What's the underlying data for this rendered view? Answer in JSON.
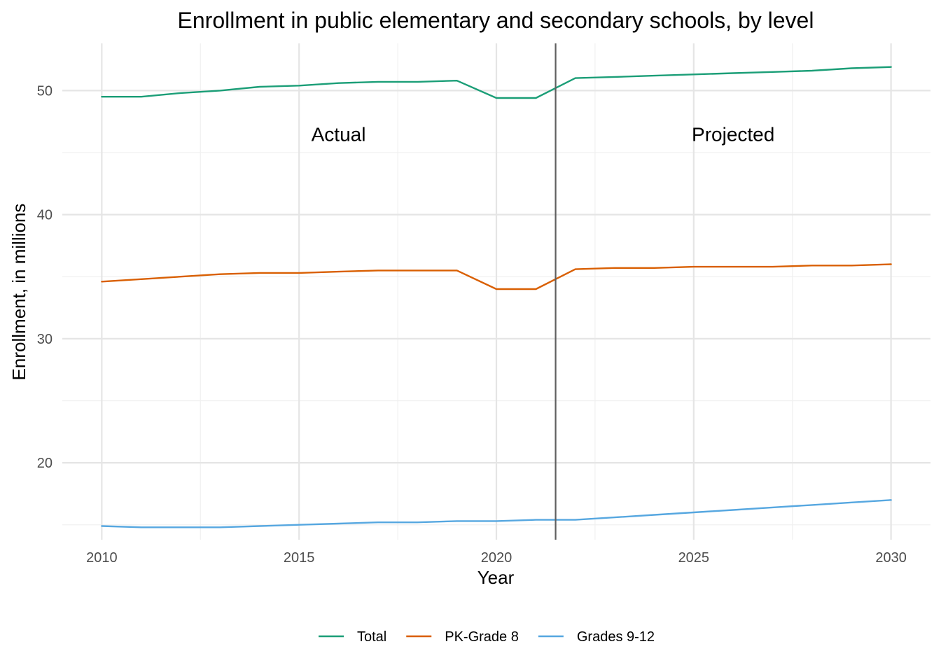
{
  "chart_data": {
    "type": "line",
    "title": "Enrollment in public elementary and secondary schools, by level",
    "xlabel": "Year",
    "ylabel": "Enrollment, in millions",
    "xlim": [
      2009,
      2031
    ],
    "ylim": [
      13.8,
      53.8
    ],
    "x_ticks": [
      2010,
      2015,
      2020,
      2025,
      2030
    ],
    "y_ticks": [
      20,
      30,
      40,
      50
    ],
    "x_tick_labels": [
      "2010",
      "2015",
      "2020",
      "2025",
      "2030"
    ],
    "y_tick_labels": [
      "20",
      "30",
      "40",
      "50"
    ],
    "grid": true,
    "legend_position": "bottom",
    "x": [
      2010,
      2011,
      2012,
      2013,
      2014,
      2015,
      2016,
      2017,
      2018,
      2019,
      2020,
      2021,
      2022,
      2023,
      2024,
      2025,
      2026,
      2027,
      2028,
      2029,
      2030
    ],
    "series": [
      {
        "name": "Total",
        "color": "#1b9e77",
        "values": [
          49.5,
          49.5,
          49.8,
          50.0,
          50.3,
          50.4,
          50.6,
          50.7,
          50.7,
          50.8,
          49.4,
          49.4,
          51.0,
          51.1,
          51.2,
          51.3,
          51.4,
          51.5,
          51.6,
          51.8,
          51.9
        ]
      },
      {
        "name": "PK-Grade 8",
        "color": "#d95f02",
        "values": [
          34.6,
          34.8,
          35.0,
          35.2,
          35.3,
          35.3,
          35.4,
          35.5,
          35.5,
          35.5,
          34.0,
          34.0,
          35.6,
          35.7,
          35.7,
          35.8,
          35.8,
          35.8,
          35.9,
          35.9,
          36.0
        ]
      },
      {
        "name": "Grades 9-12",
        "color": "#56a7e0",
        "values": [
          14.9,
          14.8,
          14.8,
          14.8,
          14.9,
          15.0,
          15.1,
          15.2,
          15.2,
          15.3,
          15.3,
          15.4,
          15.4,
          15.6,
          15.8,
          16.0,
          16.2,
          16.4,
          16.6,
          16.8,
          17.0
        ]
      }
    ],
    "divider_x": 2021.5,
    "annotations": [
      {
        "text": "Actual",
        "x": 2016,
        "y": 46.5
      },
      {
        "text": "Projected",
        "x": 2026,
        "y": 46.5
      }
    ]
  }
}
